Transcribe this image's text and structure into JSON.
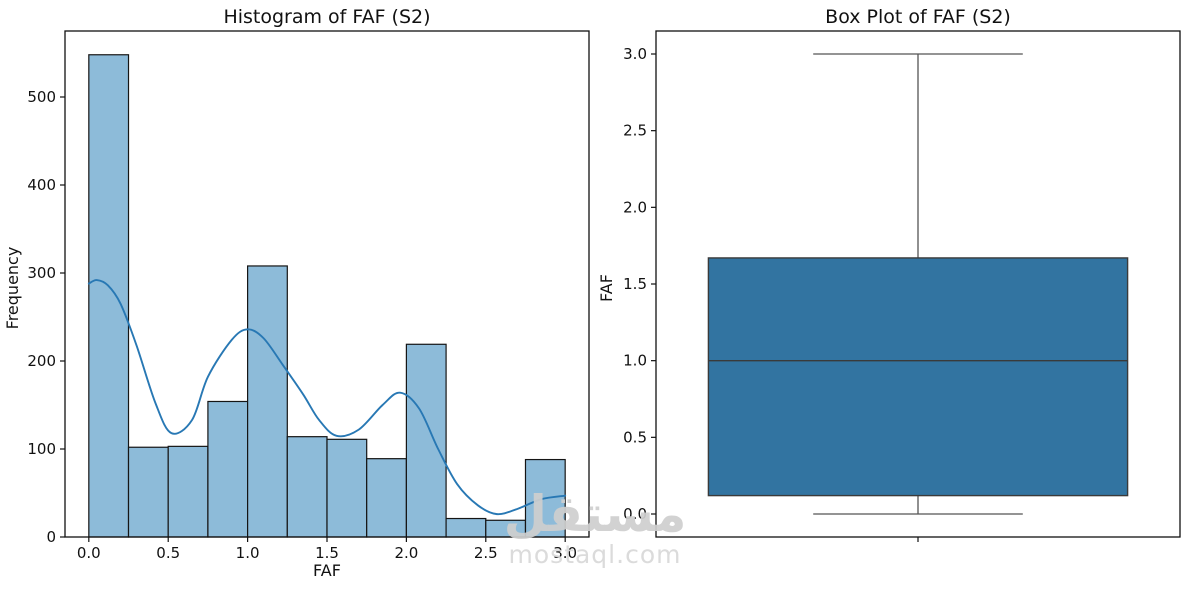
{
  "page": {
    "background": "#ffffff"
  },
  "watermark": {
    "logo_text": "مستقل",
    "domain_text": "mostaql.com",
    "color": "#d2d2d2"
  },
  "chart_data": [
    {
      "type": "histogram",
      "title": "Histogram of FAF (S2)",
      "xlabel": "FAF",
      "ylabel": "Frequency",
      "bins": {
        "start": 0.0,
        "width": 0.25
      },
      "counts": [
        548,
        102,
        103,
        154,
        308,
        114,
        111,
        89,
        219,
        21,
        19,
        88
      ],
      "kde_curve": [
        [
          0.0,
          288
        ],
        [
          0.05,
          292
        ],
        [
          0.12,
          286
        ],
        [
          0.2,
          265
        ],
        [
          0.3,
          218
        ],
        [
          0.42,
          152
        ],
        [
          0.52,
          118
        ],
        [
          0.65,
          133
        ],
        [
          0.75,
          182
        ],
        [
          0.9,
          224
        ],
        [
          1.0,
          236
        ],
        [
          1.1,
          226
        ],
        [
          1.22,
          196
        ],
        [
          1.35,
          162
        ],
        [
          1.45,
          133
        ],
        [
          1.56,
          115
        ],
        [
          1.7,
          122
        ],
        [
          1.85,
          150
        ],
        [
          1.96,
          164
        ],
        [
          2.08,
          146
        ],
        [
          2.2,
          100
        ],
        [
          2.32,
          60
        ],
        [
          2.45,
          36
        ],
        [
          2.57,
          26
        ],
        [
          2.7,
          32
        ],
        [
          2.85,
          43
        ],
        [
          3.0,
          47
        ]
      ],
      "xticks": [
        "0.0",
        "0.5",
        "1.0",
        "1.5",
        "2.0",
        "2.5",
        "3.0"
      ],
      "xtick_values": [
        0,
        0.5,
        1,
        1.5,
        2,
        2.5,
        3
      ],
      "yticks": [
        "0",
        "100",
        "200",
        "300",
        "400",
        "500"
      ],
      "ytick_values": [
        0,
        100,
        200,
        300,
        400,
        500
      ],
      "xlim": [
        -0.15,
        3.15
      ],
      "ylim": [
        0,
        575
      ],
      "grid": false,
      "colors": {
        "bar_fill": "#8dbbd9",
        "bar_edge": "#151515",
        "kde": "#2878b4"
      }
    },
    {
      "type": "box",
      "title": "Box Plot of FAF (S2)",
      "xlabel": "",
      "ylabel": "FAF",
      "stats": {
        "whisker_low": 0.0,
        "q1": 0.12,
        "median": 1.0,
        "q3": 1.67,
        "whisker_high": 3.0
      },
      "yticks": [
        "0.0",
        "0.5",
        "1.0",
        "1.5",
        "2.0",
        "2.5",
        "3.0"
      ],
      "ytick_values": [
        0,
        0.5,
        1,
        1.5,
        2,
        2.5,
        3
      ],
      "ylim": [
        -0.15,
        3.15
      ],
      "xlim": [
        -0.5,
        0.5
      ],
      "box_halfwidth": 0.4,
      "cap_halfwidth": 0.2,
      "grid": false,
      "colors": {
        "box_fill": "#3274a1",
        "line": "#3a3a3a",
        "whisker": "#555555"
      }
    }
  ]
}
